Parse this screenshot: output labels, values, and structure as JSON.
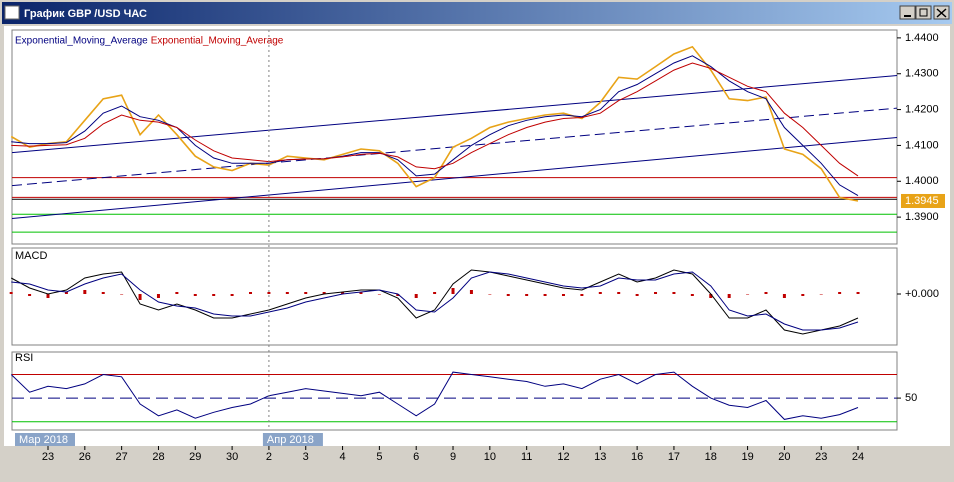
{
  "window": {
    "title": "График GBP /USD  ЧАС"
  },
  "chart_data": [
    {
      "type": "line",
      "values": [
        1.4125,
        1.4095,
        1.4105,
        1.411,
        1.417,
        1.423,
        1.424,
        1.413,
        1.4185,
        1.413,
        1.407,
        1.404,
        1.403,
        1.405,
        1.4045,
        1.407,
        1.4065,
        1.406,
        1.4075,
        1.409,
        1.4085,
        1.405,
        1.3985,
        1.401,
        1.4095,
        1.412,
        1.415,
        1.4165,
        1.4175,
        1.4185,
        1.419,
        1.4175,
        1.422,
        1.429,
        1.4285,
        1.432,
        1.4355,
        1.4375,
        1.431,
        1.423,
        1.4225,
        1.4235,
        1.409,
        1.4075,
        1.4035,
        1.3955,
        1.3945
      ],
      "color": "#e8a317",
      "series": [
        {
          "name": "Exponential_Moving_Average",
          "color": "#000080",
          "values": [
            1.411,
            1.4105,
            1.4105,
            1.4108,
            1.414,
            1.419,
            1.421,
            1.418,
            1.417,
            1.415,
            1.41,
            1.4065,
            1.405,
            1.405,
            1.405,
            1.406,
            1.4062,
            1.4063,
            1.407,
            1.408,
            1.408,
            1.406,
            1.4015,
            1.402,
            1.406,
            1.41,
            1.413,
            1.4155,
            1.417,
            1.418,
            1.4185,
            1.418,
            1.42,
            1.425,
            1.427,
            1.43,
            1.433,
            1.435,
            1.432,
            1.428,
            1.425,
            1.423,
            1.415,
            1.41,
            1.405,
            1.399,
            1.396
          ]
        },
        {
          "name": "Exponential_Moving_Average",
          "color": "#c00000",
          "values": [
            1.41,
            1.4098,
            1.41,
            1.4102,
            1.412,
            1.416,
            1.4185,
            1.417,
            1.4165,
            1.415,
            1.4115,
            1.4085,
            1.4065,
            1.406,
            1.4055,
            1.406,
            1.4062,
            1.4063,
            1.4068,
            1.4075,
            1.4078,
            1.4068,
            1.404,
            1.4035,
            1.405,
            1.408,
            1.4105,
            1.413,
            1.415,
            1.4165,
            1.4175,
            1.4178,
            1.419,
            1.4225,
            1.425,
            1.428,
            1.431,
            1.433,
            1.4315,
            1.429,
            1.4265,
            1.425,
            1.419,
            1.415,
            1.41,
            1.405,
            1.4015
          ]
        }
      ],
      "ylim": [
        1.3825,
        1.4422
      ],
      "yticks": [
        {
          "value": 1.39,
          "label": "1.3900"
        },
        {
          "value": 1.4,
          "label": "1.4000"
        },
        {
          "value": 1.41,
          "label": "1.4100"
        },
        {
          "value": 1.42,
          "label": "1.4200"
        },
        {
          "value": 1.43,
          "label": "1.4300"
        },
        {
          "value": 1.44,
          "label": "1.4400"
        }
      ],
      "last_price": {
        "value": 1.3945,
        "label": "1.3945"
      },
      "levels": [
        {
          "value": 1.401,
          "color": "#c00000"
        },
        {
          "value": 1.3955,
          "color": "#c00000"
        },
        {
          "value": 1.395,
          "color": "#000000"
        },
        {
          "value": 1.3908,
          "color": "#00c000"
        },
        {
          "value": 1.3858,
          "color": "#00c000"
        }
      ],
      "trendlines": [
        {
          "from": 1.408,
          "to": 1.4295,
          "dashed": false
        },
        {
          "from": 1.3988,
          "to": 1.4204,
          "dashed": true
        },
        {
          "from": 1.3896,
          "to": 1.4122,
          "dashed": false
        }
      ]
    },
    {
      "type": "macd",
      "title": "MACD",
      "values": [
        0.0008,
        0.0003,
        0.0,
        0.0002,
        0.0008,
        0.001,
        0.0011,
        -0.0005,
        -0.0008,
        -0.0005,
        -0.0008,
        -0.0012,
        -0.0012,
        -0.001,
        -0.0008,
        -0.0005,
        -0.0002,
        0.0,
        0.0001,
        0.0002,
        0.0002,
        -0.0002,
        -0.0012,
        -0.0008,
        0.0005,
        0.0012,
        0.0011,
        0.0009,
        0.0007,
        0.0005,
        0.0003,
        0.0002,
        0.0006,
        0.001,
        0.0006,
        0.0008,
        0.0012,
        0.001,
        0.0,
        -0.0012,
        -0.0012,
        -0.0008,
        -0.0018,
        -0.002,
        -0.0018,
        -0.0016,
        -0.0012
      ],
      "signal": [
        0.0006,
        0.0005,
        0.0002,
        0.0001,
        0.0005,
        0.0008,
        0.001,
        0.0002,
        -0.0004,
        -0.0006,
        -0.0007,
        -0.001,
        -0.0011,
        -0.0011,
        -0.0009,
        -0.0007,
        -0.0004,
        -0.0002,
        0.0,
        0.0001,
        0.0002,
        0.0,
        -0.0008,
        -0.0009,
        -0.0002,
        0.0008,
        0.0011,
        0.001,
        0.0008,
        0.0006,
        0.0004,
        0.0003,
        0.0004,
        0.0008,
        0.0007,
        0.0007,
        0.001,
        0.0011,
        0.0004,
        -0.0008,
        -0.0011,
        -0.001,
        -0.0015,
        -0.0018,
        -0.0018,
        -0.0017,
        -0.0014
      ],
      "histogram": [
        0.0001,
        -0.0001,
        -0.0002,
        0.0001,
        0.0002,
        0.0001,
        0.0,
        -0.0003,
        -0.0002,
        0.0001,
        -0.0001,
        -0.0001,
        -0.0001,
        0.0001,
        0.0001,
        0.0001,
        0.0001,
        0.0001,
        0.0001,
        0.0001,
        0.0,
        -0.0001,
        -0.0002,
        0.0001,
        0.0003,
        0.0002,
        0.0,
        -0.0001,
        -0.0001,
        -0.0001,
        -0.0001,
        -0.0001,
        0.0001,
        0.0001,
        -0.0001,
        0.0001,
        0.0001,
        -0.0001,
        -0.0002,
        -0.0002,
        0.0,
        0.0001,
        -0.0002,
        -0.0001,
        0.0,
        0.0001,
        0.0001
      ],
      "color": "#000000",
      "signal_color": "#000080",
      "histogram_color": "#c00000",
      "ylim": [
        -0.00255,
        0.0023
      ],
      "yticks": [
        {
          "value": 0,
          "label": "+0.000"
        }
      ]
    },
    {
      "type": "rsi",
      "title": "RSI",
      "values": [
        70,
        55,
        60,
        58,
        62,
        70,
        68,
        45,
        35,
        40,
        33,
        38,
        42,
        45,
        52,
        55,
        58,
        56,
        54,
        52,
        55,
        45,
        35,
        45,
        72,
        70,
        68,
        66,
        64,
        60,
        62,
        58,
        66,
        70,
        62,
        70,
        72,
        60,
        50,
        44,
        42,
        48,
        32,
        35,
        33,
        36,
        42
      ],
      "color": "#000080",
      "ylim": [
        23,
        89
      ],
      "yticks": [
        50
      ],
      "overbought": 70,
      "oversold": 30,
      "categories": [
        null,
        null,
        "23",
        null,
        "26",
        null,
        "27",
        null,
        "28",
        null,
        "29",
        null,
        "30",
        null,
        "2",
        null,
        "3",
        null,
        "4",
        null,
        "5",
        null,
        "6",
        null,
        "9",
        null,
        "10",
        null,
        "11",
        null,
        "12",
        null,
        "13",
        null,
        "16",
        null,
        "17",
        null,
        "18",
        null,
        "19",
        null,
        "20",
        null,
        "23",
        null,
        "24"
      ],
      "periods": [
        "Мар 2018",
        "Апр 2018"
      ]
    }
  ]
}
